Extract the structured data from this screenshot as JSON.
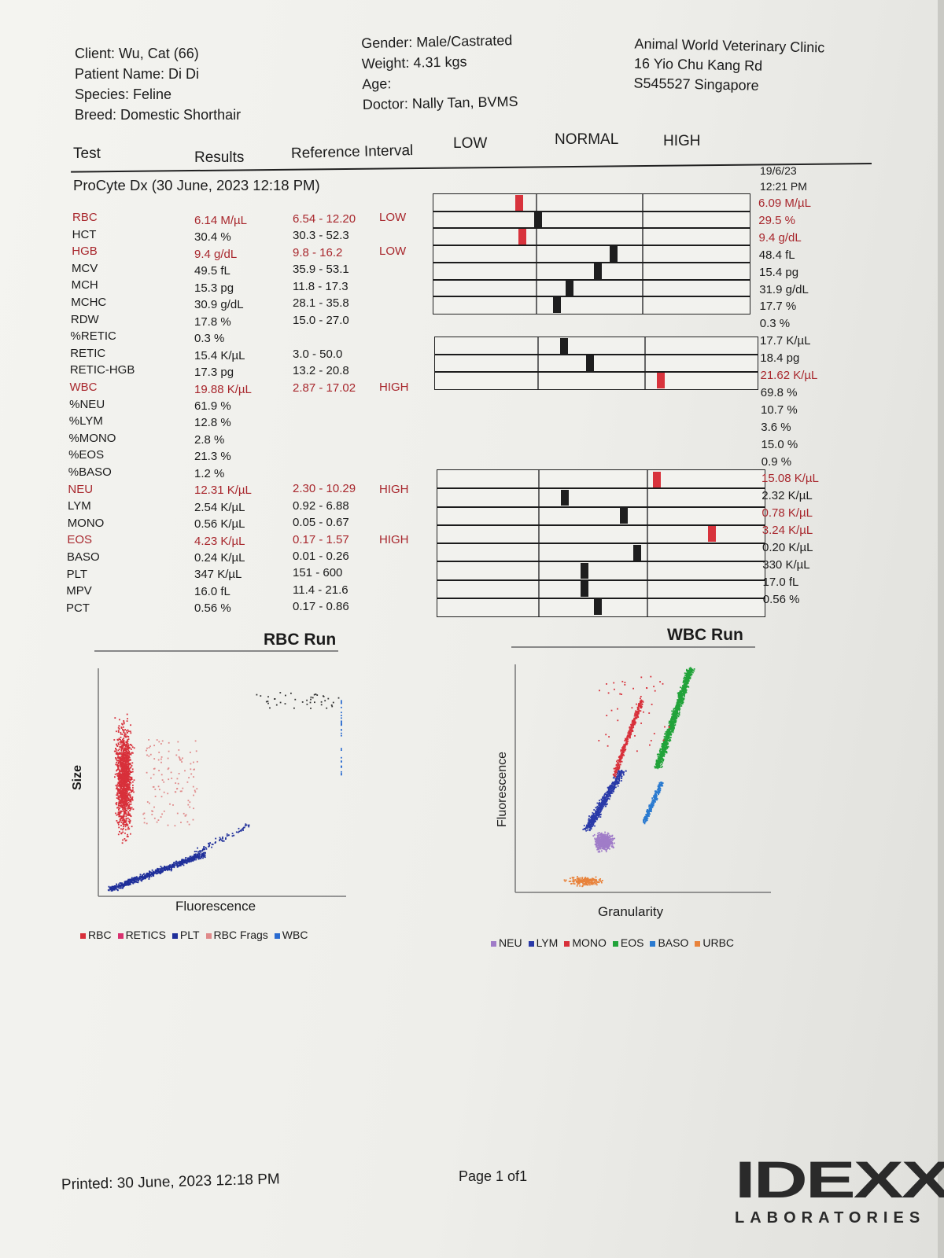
{
  "header": {
    "client": "Client: Wu, Cat (66)",
    "patient": "Patient Name: Di Di",
    "species": "Species: Feline",
    "breed": "Breed: Domestic Shorthair",
    "gender": "Gender: Male/Castrated",
    "weight": "Weight: 4.31 kgs",
    "age": "Age:",
    "doctor": "Doctor: Nally Tan, BVMS",
    "clinic_name": "Animal World Veterinary Clinic",
    "clinic_street": "16 Yio Chu Kang Rd",
    "clinic_city": "S545527 Singapore"
  },
  "columns": {
    "test": "Test",
    "results": "Results",
    "reference": "Reference Interval",
    "low": "LOW",
    "normal": "NORMAL",
    "high": "HIGH"
  },
  "run": {
    "title": "ProCyte Dx (30 June, 2023 12:18 PM)",
    "prev_date": "19/6/23",
    "prev_time": "12:21 PM"
  },
  "tests": [
    {
      "name": "RBC",
      "result": "6.14 M/µL",
      "ref": "6.54 - 12.20",
      "flag": "LOW",
      "abnormal": true
    },
    {
      "name": "HCT",
      "result": "30.4 %",
      "ref": "30.3 - 52.3",
      "flag": "",
      "abnormal": false
    },
    {
      "name": "HGB",
      "result": "9.4 g/dL",
      "ref": "9.8 - 16.2",
      "flag": "LOW",
      "abnormal": true
    },
    {
      "name": "MCV",
      "result": "49.5 fL",
      "ref": "35.9 - 53.1",
      "flag": "",
      "abnormal": false
    },
    {
      "name": "MCH",
      "result": "15.3 pg",
      "ref": "11.8 - 17.3",
      "flag": "",
      "abnormal": false
    },
    {
      "name": "MCHC",
      "result": "30.9 g/dL",
      "ref": "28.1 - 35.8",
      "flag": "",
      "abnormal": false
    },
    {
      "name": "RDW",
      "result": "17.8 %",
      "ref": "15.0 - 27.0",
      "flag": "",
      "abnormal": false
    },
    {
      "name": "%RETIC",
      "result": "0.3 %",
      "ref": "",
      "flag": "",
      "abnormal": false
    },
    {
      "name": "RETIC",
      "result": "15.4 K/µL",
      "ref": "3.0 - 50.0",
      "flag": "",
      "abnormal": false
    },
    {
      "name": "RETIC-HGB",
      "result": "17.3 pg",
      "ref": "13.2 - 20.8",
      "flag": "",
      "abnormal": false
    },
    {
      "name": "WBC",
      "result": "19.88 K/µL",
      "ref": "2.87 - 17.02",
      "flag": "HIGH",
      "abnormal": true
    },
    {
      "name": "%NEU",
      "result": "61.9 %",
      "ref": "",
      "flag": "",
      "abnormal": false
    },
    {
      "name": "%LYM",
      "result": "12.8 %",
      "ref": "",
      "flag": "",
      "abnormal": false
    },
    {
      "name": "%MONO",
      "result": "2.8 %",
      "ref": "",
      "flag": "",
      "abnormal": false
    },
    {
      "name": "%EOS",
      "result": "21.3 %",
      "ref": "",
      "flag": "",
      "abnormal": false
    },
    {
      "name": "%BASO",
      "result": "1.2 %",
      "ref": "",
      "flag": "",
      "abnormal": false
    },
    {
      "name": "NEU",
      "result": "12.31 K/µL",
      "ref": "2.30 - 10.29",
      "flag": "HIGH",
      "abnormal": true
    },
    {
      "name": "LYM",
      "result": "2.54 K/µL",
      "ref": "0.92 - 6.88",
      "flag": "",
      "abnormal": false
    },
    {
      "name": "MONO",
      "result": "0.56 K/µL",
      "ref": "0.05 - 0.67",
      "flag": "",
      "abnormal": false
    },
    {
      "name": "EOS",
      "result": "4.23 K/µL",
      "ref": "0.17 - 1.57",
      "flag": "HIGH",
      "abnormal": true
    },
    {
      "name": "BASO",
      "result": "0.24 K/µL",
      "ref": "0.01 - 0.26",
      "flag": "",
      "abnormal": false
    },
    {
      "name": "PLT",
      "result": "347 K/µL",
      "ref": "151 - 600",
      "flag": "",
      "abnormal": false
    },
    {
      "name": "MPV",
      "result": "16.0 fL",
      "ref": "11.4 - 21.6",
      "flag": "",
      "abnormal": false
    },
    {
      "name": "PCT",
      "result": "0.56 %",
      "ref": "0.17 - 0.86",
      "flag": "",
      "abnormal": false
    }
  ],
  "previous": [
    {
      "value": "6.09 M/µL",
      "abnormal": true
    },
    {
      "value": "29.5 %",
      "abnormal": true
    },
    {
      "value": "9.4 g/dL",
      "abnormal": true
    },
    {
      "value": "48.4 fL",
      "abnormal": false
    },
    {
      "value": "15.4 pg",
      "abnormal": false
    },
    {
      "value": "31.9 g/dL",
      "abnormal": false
    },
    {
      "value": "17.7 %",
      "abnormal": false
    },
    {
      "value": "0.3 %",
      "abnormal": false
    },
    {
      "value": "17.7 K/µL",
      "abnormal": false
    },
    {
      "value": "18.4 pg",
      "abnormal": false
    },
    {
      "value": "21.62 K/µL",
      "abnormal": true
    },
    {
      "value": "69.8 %",
      "abnormal": false
    },
    {
      "value": "10.7 %",
      "abnormal": false
    },
    {
      "value": "3.6 %",
      "abnormal": false
    },
    {
      "value": "15.0 %",
      "abnormal": false
    },
    {
      "value": "0.9 %",
      "abnormal": false
    },
    {
      "value": "15.08 K/µL",
      "abnormal": true
    },
    {
      "value": "2.32 K/µL",
      "abnormal": false
    },
    {
      "value": "0.78 K/µL",
      "abnormal": true
    },
    {
      "value": "3.24 K/µL",
      "abnormal": true
    },
    {
      "value": "0.20 K/µL",
      "abnormal": false
    },
    {
      "value": "330 K/µL",
      "abnormal": false
    },
    {
      "value": "17.0 fL",
      "abnormal": false
    },
    {
      "value": "0.56 %",
      "abnormal": false
    }
  ],
  "bar_group1": [
    {
      "test": "RBC",
      "level": 0.27,
      "abnormal": true
    },
    {
      "test": "HCT",
      "level": 0.33,
      "abnormal": false
    },
    {
      "test": "HGB",
      "level": 0.28,
      "abnormal": true
    },
    {
      "test": "MCV",
      "level": 0.57,
      "abnormal": false
    },
    {
      "test": "MCH",
      "level": 0.52,
      "abnormal": false
    },
    {
      "test": "MCHC",
      "level": 0.43,
      "abnormal": false
    },
    {
      "test": "RDW",
      "level": 0.39,
      "abnormal": false
    }
  ],
  "bar_group2": [
    {
      "test": "RETIC",
      "level": 0.4,
      "abnormal": false
    },
    {
      "test": "RETIC-HGB",
      "level": 0.48,
      "abnormal": false
    },
    {
      "test": "WBC",
      "level": 0.7,
      "abnormal": true
    }
  ],
  "bar_group3": [
    {
      "test": "NEU",
      "level": 0.67,
      "abnormal": true
    },
    {
      "test": "LYM",
      "level": 0.39,
      "abnormal": false
    },
    {
      "test": "MONO",
      "level": 0.57,
      "abnormal": false
    },
    {
      "test": "EOS",
      "level": 0.84,
      "abnormal": true
    },
    {
      "test": "BASO",
      "level": 0.61,
      "abnormal": false
    },
    {
      "test": "PLT",
      "level": 0.45,
      "abnormal": false
    },
    {
      "test": "MPV",
      "level": 0.45,
      "abnormal": false
    },
    {
      "test": "PCT",
      "level": 0.49,
      "abnormal": false
    }
  ],
  "rbc_run": {
    "title": "RBC Run",
    "xlabel": "Fluorescence",
    "ylabel": "Size",
    "legend": [
      {
        "label": "RBC",
        "color": "#d8303a"
      },
      {
        "label": "RETICS",
        "color": "#d8306e"
      },
      {
        "label": "PLT",
        "color": "#1f2f9a"
      },
      {
        "label": "RBC Frags",
        "color": "#e08a8a"
      },
      {
        "label": "WBC",
        "color": "#2a6bd0"
      }
    ]
  },
  "wbc_run": {
    "title": "WBC Run",
    "xlabel": "Granularity",
    "ylabel": "Fluorescence",
    "legend": [
      {
        "label": "NEU",
        "color": "#a07cc8"
      },
      {
        "label": "LYM",
        "color": "#2a3aa8"
      },
      {
        "label": "MONO",
        "color": "#d8303a"
      },
      {
        "label": "EOS",
        "color": "#22a33a"
      },
      {
        "label": "BASO",
        "color": "#2a7ad0"
      },
      {
        "label": "URBC",
        "color": "#e8823a"
      }
    ]
  },
  "footer": {
    "printed": "Printed: 30 June, 2023 12:18 PM",
    "page": "Page 1 of1",
    "logo_name": "IDEXX",
    "logo_sub": "LABORATORIES"
  }
}
